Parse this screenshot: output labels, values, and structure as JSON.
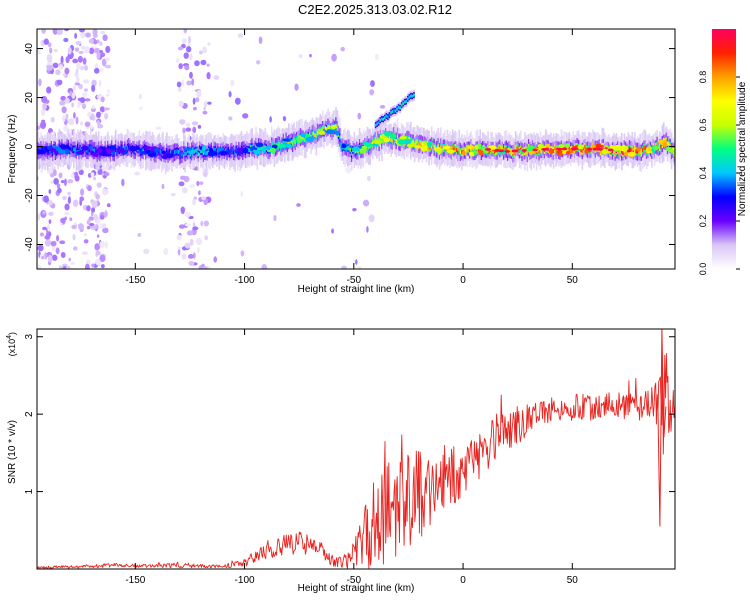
{
  "page_title": "C2E2.2025.313.03.02.R12",
  "chart_data": [
    {
      "type": "heatmap",
      "name": "spectrogram",
      "xlabel": "Height of straight line (km)",
      "ylabel": "Frequency (Hz)",
      "xlim": [
        -195,
        97
      ],
      "ylim": [
        -50,
        48
      ],
      "xticks": [
        -150,
        -100,
        -50,
        0,
        50
      ],
      "xtick_labels": [
        "-150",
        "-100",
        "-50",
        "0",
        "50"
      ],
      "yticks": [
        -40,
        -20,
        0,
        20,
        40
      ],
      "ytick_labels": [
        "-40",
        "-20",
        "0",
        "20",
        "40"
      ],
      "colorbar": {
        "label": "Normalized spectral amplitude",
        "range": [
          0,
          1
        ],
        "ticks": [
          0.0,
          0.2,
          0.4,
          0.6,
          0.8
        ],
        "tick_labels": [
          "0.0",
          "0.2",
          "0.4",
          "0.6",
          "0.8"
        ],
        "colors": [
          "#ffffff",
          "#d9c6f5",
          "#6a00ff",
          "#0000ff",
          "#00c8ff",
          "#00ff80",
          "#c8ff00",
          "#ffff00",
          "#ffa000",
          "#ff2000",
          "#ff0060"
        ]
      },
      "main_trace": {
        "x": [
          -195,
          -180,
          -165,
          -150,
          -135,
          -120,
          -105,
          -95,
          -85,
          -75,
          -65,
          -58,
          -55,
          -50,
          -45,
          -40,
          -35,
          -30,
          -25,
          -20,
          -10,
          0,
          10,
          20,
          40,
          60,
          80,
          88,
          92,
          97
        ],
        "freq": [
          -2,
          -1,
          -2,
          -1,
          -3,
          -2,
          -2,
          -1,
          0,
          3,
          6,
          8,
          -1,
          -2,
          0,
          2,
          4,
          3,
          2,
          1,
          -1,
          -2,
          -1,
          -2,
          -1,
          -1,
          -2,
          -1,
          2,
          -2
        ],
        "amplitude": [
          0.3,
          0.35,
          0.3,
          0.35,
          0.3,
          0.4,
          0.3,
          0.45,
          0.5,
          0.55,
          0.6,
          0.55,
          0.4,
          0.5,
          0.55,
          0.6,
          0.65,
          0.6,
          0.7,
          0.65,
          0.7,
          0.75,
          0.8,
          0.75,
          0.8,
          0.85,
          0.8,
          0.75,
          0.8,
          0.7
        ]
      },
      "branch_trace": {
        "x": [
          -40,
          -35,
          -30,
          -25,
          -22
        ],
        "freq": [
          9,
          12,
          15,
          19,
          22
        ]
      }
    },
    {
      "type": "line",
      "name": "snr",
      "xlabel": "Height of straight line (km)",
      "ylabel": "SNR (10 * v/v)",
      "scale_label": "(x10^4)",
      "scale_base": "(x10",
      "scale_exp": "4",
      "scale_close": ")",
      "xlim": [
        -195,
        97
      ],
      "ylim": [
        0,
        3.1
      ],
      "xticks": [
        -150,
        -100,
        -50,
        0,
        50
      ],
      "xtick_labels": [
        "-150",
        "-100",
        "-50",
        "0",
        "50"
      ],
      "yticks": [
        1,
        2,
        3
      ],
      "ytick_labels": [
        "1",
        "2",
        "3"
      ],
      "color": "#e8231f",
      "series": {
        "name": "SNR",
        "x": [
          -195,
          -175,
          -160,
          -150,
          -140,
          -130,
          -120,
          -110,
          -100,
          -90,
          -80,
          -75,
          -70,
          -65,
          -60,
          -55,
          -50,
          -45,
          -40,
          -35,
          -30,
          -25,
          -20,
          -15,
          -10,
          -5,
          0,
          5,
          10,
          15,
          20,
          25,
          30,
          40,
          50,
          60,
          70,
          80,
          85,
          90,
          93,
          97
        ],
        "mean": [
          0.02,
          0.03,
          0.05,
          0.04,
          0.04,
          0.05,
          0.04,
          0.03,
          0.08,
          0.25,
          0.32,
          0.35,
          0.3,
          0.25,
          0.12,
          0.08,
          0.15,
          0.35,
          0.55,
          0.65,
          0.8,
          0.9,
          0.95,
          1.05,
          1.15,
          1.2,
          1.3,
          1.35,
          1.5,
          1.7,
          1.8,
          1.85,
          1.95,
          2.05,
          2.1,
          2.1,
          2.1,
          2.1,
          2.15,
          2.1,
          2.05,
          2.05
        ],
        "noise": [
          0.02,
          0.02,
          0.03,
          0.02,
          0.02,
          0.04,
          0.02,
          0.02,
          0.05,
          0.12,
          0.15,
          0.15,
          0.12,
          0.1,
          0.08,
          0.08,
          0.2,
          0.5,
          0.7,
          0.75,
          0.75,
          0.65,
          0.6,
          0.55,
          0.5,
          0.4,
          0.35,
          0.35,
          0.3,
          0.3,
          0.25,
          0.25,
          0.2,
          0.18,
          0.18,
          0.18,
          0.18,
          0.18,
          0.22,
          0.35,
          0.8,
          0.05
        ]
      }
    }
  ]
}
